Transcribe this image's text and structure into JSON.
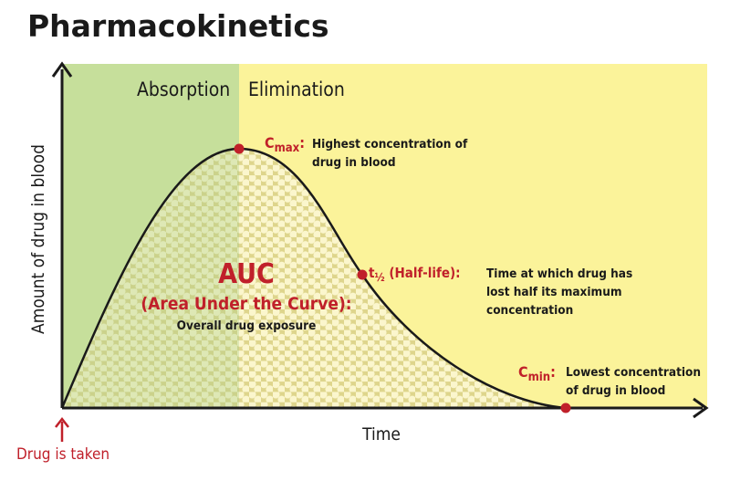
{
  "title": "Pharmacokinetics",
  "phases": [
    "Absorption",
    "Elimination"
  ],
  "axes": {
    "y": "Amount of drug in blood",
    "x": "Time"
  },
  "start_label": "Drug is taken",
  "annotations": {
    "cmax": {
      "symbol": "C",
      "subscript": "max",
      "suffix": ":",
      "text": [
        "Highest concentration of",
        "drug in blood"
      ]
    },
    "auc": {
      "symbol": "AUC",
      "term": "(Area Under the Curve):",
      "text": "Overall drug exposure"
    },
    "half_life": {
      "symbol": "t",
      "subscript": "½",
      "suffix": " (Half-life):",
      "text": [
        "Time at which drug has",
        "lost half its maximum",
        "concentration"
      ]
    },
    "cmin": {
      "symbol": "C",
      "subscript": "min",
      "suffix": ":",
      "text": [
        "Lowest concentration",
        "of drug in blood"
      ]
    }
  }
}
